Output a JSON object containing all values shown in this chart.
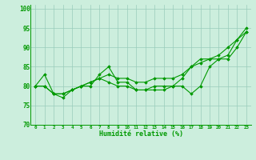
{
  "xlabel": "Humidité relative (%)",
  "background_color": "#cceedd",
  "grid_color": "#99ccbb",
  "line_color": "#009900",
  "x": [
    0,
    1,
    2,
    3,
    4,
    5,
    6,
    7,
    8,
    9,
    10,
    11,
    12,
    13,
    14,
    15,
    16,
    17,
    18,
    19,
    20,
    21,
    22,
    23
  ],
  "ylim": [
    70,
    101
  ],
  "yticks": [
    70,
    75,
    80,
    85,
    90,
    95,
    100
  ],
  "line1": [
    80,
    83,
    78,
    77,
    79,
    80,
    80,
    83,
    85,
    81,
    81,
    79,
    79,
    79,
    79,
    80,
    80,
    78,
    80,
    85,
    87,
    87,
    90,
    94
  ],
  "line2": [
    80,
    80,
    78,
    78,
    79,
    80,
    81,
    82,
    83,
    82,
    82,
    81,
    81,
    82,
    82,
    82,
    83,
    85,
    86,
    87,
    87,
    88,
    92,
    94
  ],
  "line3": [
    80,
    80,
    78,
    78,
    79,
    80,
    81,
    82,
    81,
    80,
    80,
    79,
    79,
    80,
    80,
    80,
    82,
    85,
    87,
    87,
    88,
    90,
    92,
    95
  ]
}
